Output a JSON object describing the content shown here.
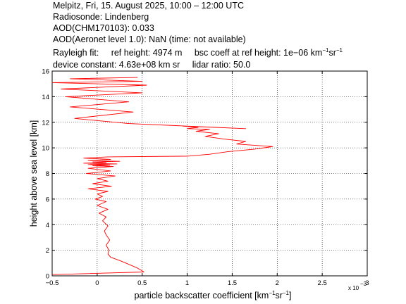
{
  "header": {
    "line1": "Melpitz, Fri, 15. August 2025, 10:00 – 12:00 UTC",
    "line2": "Radiosonde: Lindenberg",
    "line3": "AOD(CHM170103): 0.033",
    "line4": "AOD(Aeronet level 1.0): NaN   (time: not available)",
    "rayleigh_label": "Rayleigh fit:",
    "ref_height": "ref height: 4974 m",
    "bsc_prefix": "bsc coeff at ref height: 1e−06 km",
    "sup_neg1": "−1",
    "sr_text": "sr",
    "device_constant": "device constant: 4.63e+08 km sr",
    "lidar_ratio": "lidar ratio: 50.0"
  },
  "chart_data": {
    "type": "line",
    "xlabel_prefix": "particle backscatter coefficient [km",
    "xlabel_sup": "−1",
    "xlabel_mid": "sr",
    "xlabel_end": "]",
    "ylabel": "height above sea level [km]",
    "x_multiplier": "x 10",
    "x_multiplier_exp": "−3",
    "xlim": [
      -0.5,
      3.0
    ],
    "ylim": [
      0,
      16
    ],
    "xticks": [
      "−0.5",
      "0",
      "0.5",
      "1",
      "1.5",
      "2",
      "2.5",
      "3"
    ],
    "xtick_values": [
      -0.5,
      0,
      0.5,
      1,
      1.5,
      2,
      2.5,
      3
    ],
    "yticks": [
      "0",
      "2",
      "4",
      "6",
      "8",
      "10",
      "12",
      "14",
      "16"
    ],
    "ytick_values": [
      0,
      2,
      4,
      6,
      8,
      10,
      12,
      14,
      16
    ],
    "grid": true,
    "line_color": "#ff0000",
    "series": [
      {
        "x": [
          -0.5,
          0.52,
          0.45,
          0.35,
          0.25,
          0.15,
          0.12,
          0.13,
          0.1,
          0.14,
          0.1,
          0.08,
          0.12,
          0.06,
          0.1,
          0.02,
          0.12,
          0.0,
          0.1,
          -0.02,
          0.06,
          0.0,
          0.12,
          -0.1,
          0.16,
          -0.05,
          0.12,
          0.0,
          0.2,
          -0.12,
          0.15,
          -0.1,
          0.18,
          -0.05,
          0.14,
          -0.1,
          0.22,
          -0.15,
          0.1,
          -0.05,
          0.25,
          -0.1,
          0.15,
          -0.15,
          0.12,
          1.0,
          1.25,
          1.45,
          1.75,
          1.95,
          1.55,
          1.65,
          1.4,
          1.2,
          1.35,
          1.1,
          1.25,
          1.0,
          1.12,
          0.95,
          1.65,
          0.35,
          -0.25,
          0.4,
          -0.3,
          0.35,
          -0.35,
          0.5,
          -0.4,
          0.55,
          -0.5,
          0.5,
          -0.3,
          0.45
        ],
        "y": [
          0.1,
          0.3,
          0.6,
          0.9,
          1.2,
          1.45,
          1.7,
          2.0,
          2.4,
          2.8,
          3.2,
          3.5,
          3.9,
          4.3,
          4.6,
          4.9,
          5.2,
          5.5,
          5.8,
          6.0,
          6.2,
          6.4,
          6.6,
          6.8,
          7.0,
          7.2,
          7.4,
          7.6,
          7.8,
          8.0,
          8.2,
          8.4,
          8.55,
          8.6,
          8.65,
          8.7,
          8.75,
          8.8,
          8.85,
          8.9,
          8.95,
          9.0,
          9.1,
          9.2,
          9.3,
          9.35,
          9.5,
          9.7,
          9.9,
          10.1,
          10.3,
          10.5,
          10.7,
          10.9,
          11.1,
          11.3,
          11.45,
          11.5,
          11.6,
          11.7,
          11.5,
          11.9,
          12.3,
          12.8,
          13.2,
          13.6,
          14.0,
          14.3,
          14.6,
          14.9,
          15.1,
          15.2,
          15.4,
          15.5
        ]
      }
    ]
  }
}
